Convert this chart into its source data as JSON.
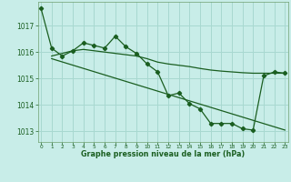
{
  "xlabel": "Graphe pression niveau de la mer (hPa)",
  "background_color": "#c8ede8",
  "grid_color": "#a8d8d0",
  "line_color": "#1a5e20",
  "ylim": [
    1012.6,
    1017.9
  ],
  "xlim": [
    -0.3,
    23.3
  ],
  "yticks": [
    1013,
    1014,
    1015,
    1016,
    1017
  ],
  "xtick_labels": [
    "0",
    "1",
    "2",
    "3",
    "4",
    "5",
    "6",
    "7",
    "8",
    "9",
    "10",
    "11",
    "12",
    "13",
    "14",
    "15",
    "16",
    "17",
    "18",
    "19",
    "20",
    "21",
    "22",
    "23"
  ],
  "line1_x": [
    0,
    1,
    2,
    3,
    4,
    5,
    6,
    7,
    8,
    9,
    10,
    11,
    12,
    13,
    14,
    15,
    16,
    17,
    18,
    19,
    20,
    21,
    22,
    23
  ],
  "line1_y": [
    1017.65,
    1016.15,
    1015.85,
    1016.05,
    1016.35,
    1016.25,
    1016.15,
    1016.6,
    1016.2,
    1015.95,
    1015.55,
    1015.25,
    1014.35,
    1014.45,
    1014.05,
    1013.85,
    1013.3,
    1013.3,
    1013.3,
    1013.1,
    1013.05,
    1015.1,
    1015.25,
    1015.2
  ],
  "line2_x": [
    1,
    2,
    3,
    4,
    5,
    6,
    7,
    8,
    9,
    10,
    11,
    12,
    13,
    14,
    15,
    16,
    17,
    18,
    19,
    20,
    21,
    22,
    23
  ],
  "line2_y": [
    1015.85,
    1015.95,
    1016.05,
    1016.1,
    1016.05,
    1016.0,
    1015.95,
    1015.9,
    1015.85,
    1015.75,
    1015.62,
    1015.55,
    1015.5,
    1015.45,
    1015.38,
    1015.32,
    1015.28,
    1015.25,
    1015.22,
    1015.2,
    1015.2,
    1015.2,
    1015.2
  ],
  "line3_x": [
    1,
    23
  ],
  "line3_y": [
    1015.75,
    1013.05
  ]
}
